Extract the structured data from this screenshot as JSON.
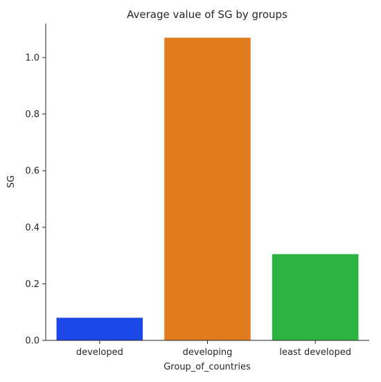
{
  "chart_data": {
    "type": "bar",
    "title": "Average value of SG by groups",
    "xlabel": "Group_of_countries",
    "ylabel": "SG",
    "categories": [
      "developed",
      "developing",
      "least developed"
    ],
    "values": [
      0.08,
      1.07,
      0.305
    ],
    "colors": [
      "#1a47e6",
      "#e07b1e",
      "#2bb341"
    ],
    "ylim": [
      0,
      1.12
    ],
    "yticks": [
      0.0,
      0.2,
      0.4,
      0.6,
      0.8,
      1.0
    ],
    "ytick_labels": [
      "0.0",
      "0.2",
      "0.4",
      "0.6",
      "0.8",
      "1.0"
    ],
    "grid": false,
    "spines": "left-bottom"
  }
}
